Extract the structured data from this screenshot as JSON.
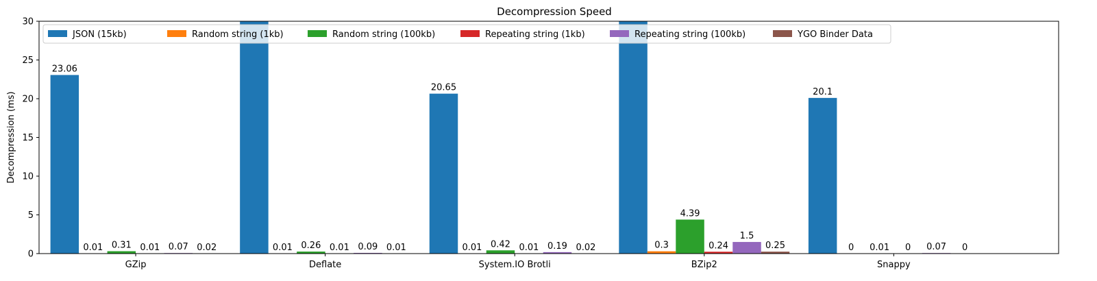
{
  "chart_data": {
    "type": "bar",
    "title": "Decompression Speed",
    "xlabel": "",
    "ylabel": "Decompression (ms)",
    "ylim": [
      0,
      30
    ],
    "yticks": [
      0,
      5,
      10,
      15,
      20,
      25,
      30
    ],
    "grid": false,
    "legend_position": "top-left",
    "categories": [
      "GZip",
      "Deflate",
      "System.IO Brotli",
      "BZip2",
      "Snappy"
    ],
    "series": [
      {
        "name": "JSON (15kb)",
        "color": "#1f77b4",
        "values": [
          23.06,
          30,
          20.65,
          30,
          20.1
        ],
        "labels": [
          "23.06",
          "",
          "20.65",
          "",
          "20.1"
        ]
      },
      {
        "name": "Random string (1kb)",
        "color": "#ff7f0e",
        "values": [
          0.01,
          0.01,
          0.01,
          0.3,
          0
        ],
        "labels": [
          "0.01",
          "0.01",
          "0.01",
          "0.3",
          "0"
        ]
      },
      {
        "name": "Random string (100kb)",
        "color": "#2ca02c",
        "values": [
          0.31,
          0.26,
          0.42,
          4.39,
          0.01
        ],
        "labels": [
          "0.31",
          "0.26",
          "0.42",
          "4.39",
          "0.01"
        ]
      },
      {
        "name": "Repeating string (1kb)",
        "color": "#d62728",
        "values": [
          0.01,
          0.01,
          0.01,
          0.24,
          0
        ],
        "labels": [
          "0.01",
          "0.01",
          "0.01",
          "0.24",
          "0"
        ]
      },
      {
        "name": "Repeating string (100kb)",
        "color": "#9467bd",
        "values": [
          0.07,
          0.09,
          0.19,
          1.5,
          0.07
        ],
        "labels": [
          "0.07",
          "0.09",
          "0.19",
          "1.5",
          "0.07"
        ]
      },
      {
        "name": "YGO Binder Data",
        "color": "#8c564b",
        "values": [
          0.02,
          0.01,
          0.02,
          0.25,
          0
        ],
        "labels": [
          "0.02",
          "0.01",
          "0.02",
          "0.25",
          "0"
        ]
      }
    ]
  }
}
